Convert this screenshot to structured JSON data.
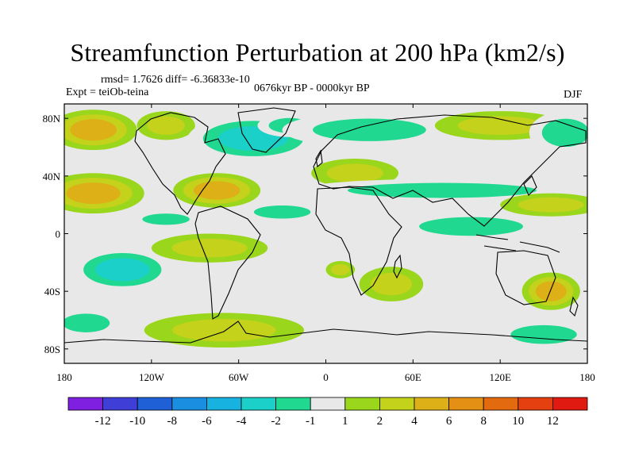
{
  "title": "Streamfunction Perturbation at 200 hPa (km2/s)",
  "rmsd_line": "rmsd= 1.7626  diff= -6.36833e-10",
  "expt_line": "Expt = teiOb-teina",
  "period_line": "0676kyr BP - 0000kyr BP",
  "season": "DJF",
  "map": {
    "lat_ticks": [
      "80N",
      "40N",
      "0",
      "40S",
      "80S"
    ],
    "lat_values": [
      80,
      40,
      0,
      -40,
      -80
    ],
    "lon_ticks": [
      "180",
      "120W",
      "60W",
      "0",
      "60E",
      "120E",
      "180"
    ],
    "lon_values": [
      -180,
      -120,
      -60,
      0,
      60,
      120,
      180
    ],
    "lat_range": [
      -90,
      90
    ],
    "lon_range": [
      -180,
      180
    ]
  },
  "colorbar": {
    "labels": [
      "-12",
      "-10",
      "-8",
      "-6",
      "-4",
      "-2",
      "-1",
      "1",
      "2",
      "4",
      "6",
      "8",
      "10",
      "12"
    ],
    "colors": [
      "#7f1fe0",
      "#3f3fd8",
      "#2060d6",
      "#1a8ee0",
      "#18b2e0",
      "#1ad0c8",
      "#20d890",
      "#e8e8e8",
      "#9ad61c",
      "#c4d21c",
      "#ddb018",
      "#e49014",
      "#e46a10",
      "#e44010",
      "#e01a10"
    ]
  },
  "anomalies": [
    {
      "lon": -160,
      "lat": 72,
      "r_lon": 30,
      "r_lat": 14,
      "value": 5
    },
    {
      "lon": -110,
      "lat": 75,
      "r_lon": 20,
      "r_lat": 10,
      "value": 3
    },
    {
      "lon": -50,
      "lat": 66,
      "r_lon": 45,
      "r_lat": 16,
      "value": -5
    },
    {
      "lon": -25,
      "lat": 75,
      "r_lon": 22,
      "r_lat": 8,
      "value": -3
    },
    {
      "lon": 30,
      "lat": 72,
      "r_lon": 60,
      "r_lat": 12,
      "value": -2
    },
    {
      "lon": 120,
      "lat": 75,
      "r_lon": 45,
      "r_lat": 10,
      "value": 2
    },
    {
      "lon": 165,
      "lat": 70,
      "r_lon": 25,
      "r_lat": 15,
      "value": -2
    },
    {
      "lon": 20,
      "lat": 42,
      "r_lon": 30,
      "r_lat": 10,
      "value": 3
    },
    {
      "lon": -160,
      "lat": 28,
      "r_lon": 35,
      "r_lat": 14,
      "value": 5
    },
    {
      "lon": -75,
      "lat": 30,
      "r_lon": 30,
      "r_lat": 12,
      "value": 5
    },
    {
      "lon": -110,
      "lat": 10,
      "r_lon": 25,
      "r_lat": 6,
      "value": -2
    },
    {
      "lon": -30,
      "lat": 15,
      "r_lon": 30,
      "r_lat": 7,
      "value": -2
    },
    {
      "lon": 80,
      "lat": 30,
      "r_lon": 100,
      "r_lat": 8,
      "value": -2
    },
    {
      "lon": 155,
      "lat": 20,
      "r_lon": 35,
      "r_lat": 8,
      "value": 3
    },
    {
      "lon": 100,
      "lat": 5,
      "r_lon": 55,
      "r_lat": 10,
      "value": -2
    },
    {
      "lon": -140,
      "lat": -25,
      "r_lon": 35,
      "r_lat": 15,
      "value": -5
    },
    {
      "lon": -80,
      "lat": -10,
      "r_lon": 40,
      "r_lat": 10,
      "value": 3
    },
    {
      "lon": 10,
      "lat": -25,
      "r_lon": 10,
      "r_lat": 6,
      "value": 3
    },
    {
      "lon": 45,
      "lat": -35,
      "r_lon": 22,
      "r_lat": 12,
      "value": 2
    },
    {
      "lon": 155,
      "lat": -40,
      "r_lon": 20,
      "r_lat": 13,
      "value": 4
    },
    {
      "lon": -70,
      "lat": -67,
      "r_lon": 55,
      "r_lat": 12,
      "value": 3
    },
    {
      "lon": -165,
      "lat": -62,
      "r_lon": 25,
      "r_lat": 10,
      "value": -2
    },
    {
      "lon": 150,
      "lat": -70,
      "r_lon": 35,
      "r_lat": 10,
      "value": -2
    }
  ]
}
